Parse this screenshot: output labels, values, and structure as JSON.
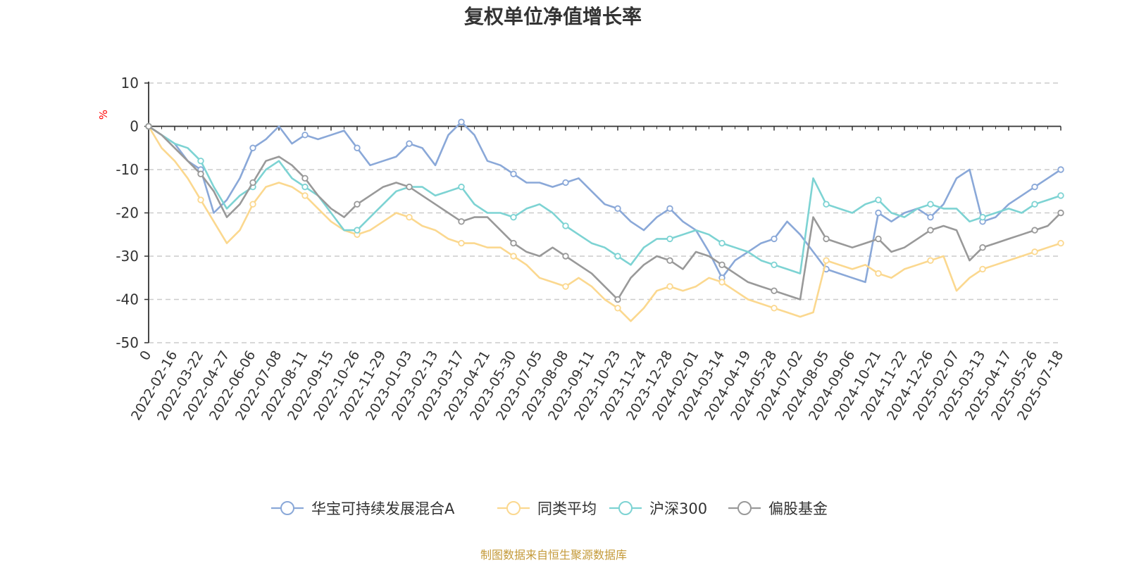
{
  "chart_data": {
    "type": "line",
    "title": "复权单位净值增长率",
    "ylabel": "%",
    "ylim": [
      -50,
      10
    ],
    "yticks": [
      10,
      0,
      -10,
      -20,
      -30,
      -40,
      -50
    ],
    "grid": true,
    "legend_position": "bottom",
    "x_tick_labels": [
      "0",
      "2022-02-16",
      "2022-03-22",
      "2022-04-27",
      "2022-06-06",
      "2022-07-08",
      "2022-08-11",
      "2022-09-15",
      "2022-10-26",
      "2022-11-29",
      "2023-01-03",
      "2023-02-13",
      "2023-03-17",
      "2023-04-21",
      "2023-05-30",
      "2023-07-05",
      "2023-08-08",
      "2023-09-11",
      "2023-10-23",
      "2023-11-24",
      "2023-12-28",
      "2024-02-01",
      "2024-03-14",
      "2024-04-19",
      "2024-05-28",
      "2024-07-02",
      "2024-08-05",
      "2024-09-06",
      "2024-10-21",
      "2024-11-22",
      "2024-12-26",
      "2025-02-07",
      "2025-03-13",
      "2025-04-17",
      "2025-05-26",
      "2025-07-18"
    ],
    "series": [
      {
        "name": "华宝可持续发展混合A",
        "color": "#8aa8d8",
        "values": [
          0,
          -2,
          -4,
          -8,
          -10,
          -20,
          -17,
          -12,
          -5,
          -3,
          0,
          -4,
          -2,
          -3,
          -2,
          -1,
          -5,
          -9,
          -8,
          -7,
          -4,
          -5,
          -9,
          -2,
          1,
          -2,
          -8,
          -9,
          -11,
          -13,
          -13,
          -14,
          -13,
          -12,
          -15,
          -18,
          -19,
          -22,
          -24,
          -21,
          -19,
          -22,
          -24,
          -29,
          -35,
          -31,
          -29,
          -27,
          -26,
          -22,
          -25,
          -29,
          -33,
          -34,
          -35,
          -36,
          -20,
          -22,
          -20,
          -19,
          -21,
          -18,
          -12,
          -10,
          -22,
          -21,
          -18,
          -16,
          -14,
          -12,
          -10
        ]
      },
      {
        "name": "同类平均",
        "color": "#fbd88f",
        "values": [
          0,
          -5,
          -8,
          -12,
          -17,
          -22,
          -27,
          -24,
          -18,
          -14,
          -13,
          -14,
          -16,
          -19,
          -22,
          -24,
          -25,
          -24,
          -22,
          -20,
          -21,
          -23,
          -24,
          -26,
          -27,
          -27,
          -28,
          -28,
          -30,
          -32,
          -35,
          -36,
          -37,
          -35,
          -37,
          -40,
          -42,
          -45,
          -42,
          -38,
          -37,
          -38,
          -37,
          -35,
          -36,
          -38,
          -40,
          -41,
          -42,
          -43,
          -44,
          -43,
          -31,
          -32,
          -33,
          -32,
          -34,
          -35,
          -33,
          -32,
          -31,
          -30,
          -38,
          -35,
          -33,
          -32,
          -31,
          -30,
          -29,
          -28,
          -27
        ]
      },
      {
        "name": "沪深300",
        "color": "#7dd3d3",
        "values": [
          0,
          -2,
          -4,
          -5,
          -8,
          -14,
          -19,
          -16,
          -14,
          -10,
          -8,
          -12,
          -14,
          -16,
          -20,
          -24,
          -24,
          -21,
          -18,
          -15,
          -14,
          -14,
          -16,
          -15,
          -14,
          -18,
          -20,
          -20,
          -21,
          -19,
          -18,
          -20,
          -23,
          -25,
          -27,
          -28,
          -30,
          -32,
          -28,
          -26,
          -26,
          -25,
          -24,
          -25,
          -27,
          -28,
          -29,
          -31,
          -32,
          -33,
          -34,
          -12,
          -18,
          -19,
          -20,
          -18,
          -17,
          -20,
          -21,
          -19,
          -18,
          -19,
          -19,
          -22,
          -21,
          -20,
          -19,
          -20,
          -18,
          -17,
          -16
        ]
      },
      {
        "name": "偏股基金",
        "color": "#999999",
        "values": [
          0,
          -2,
          -5,
          -8,
          -11,
          -15,
          -21,
          -18,
          -13,
          -8,
          -7,
          -9,
          -12,
          -16,
          -19,
          -21,
          -18,
          -16,
          -14,
          -13,
          -14,
          -16,
          -18,
          -20,
          -22,
          -21,
          -21,
          -24,
          -27,
          -29,
          -30,
          -28,
          -30,
          -32,
          -34,
          -37,
          -40,
          -35,
          -32,
          -30,
          -31,
          -33,
          -29,
          -30,
          -32,
          -34,
          -36,
          -37,
          -38,
          -39,
          -40,
          -21,
          -26,
          -27,
          -28,
          -27,
          -26,
          -29,
          -28,
          -26,
          -24,
          -23,
          -24,
          -31,
          -28,
          -27,
          -26,
          -25,
          -24,
          -23,
          -20
        ]
      }
    ]
  },
  "source_note": "制图数据来自恒生聚源数据库",
  "source_color": "#c49a3a"
}
